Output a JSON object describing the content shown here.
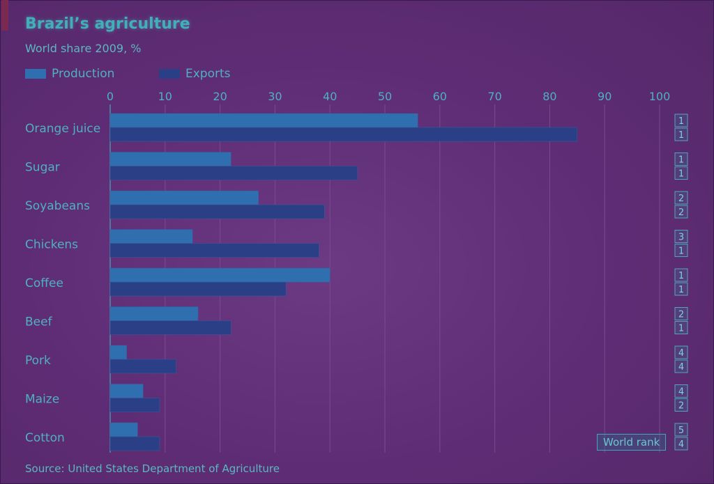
{
  "header": {
    "title": "Brazil’s agriculture",
    "subtitle": "World share 2009, %"
  },
  "legend": {
    "production": "Production",
    "exports": "Exports"
  },
  "footer": {
    "source": "Source: United States Department of Agriculture",
    "world_rank_label": "World rank"
  },
  "colors": {
    "production": "#2f6fb0",
    "exports": "#2a3f86",
    "text": "#4fb0c0"
  },
  "chart_data": {
    "type": "bar",
    "orientation": "horizontal",
    "title": "Brazil’s agriculture",
    "subtitle": "World share 2009, %",
    "categories": [
      "Orange juice",
      "Sugar",
      "Soyabeans",
      "Chickens",
      "Coffee",
      "Beef",
      "Pork",
      "Maize",
      "Cotton"
    ],
    "series": [
      {
        "name": "Production",
        "values": [
          56,
          22,
          27,
          15,
          40,
          16,
          3,
          6,
          5
        ],
        "world_rank": [
          1,
          1,
          2,
          3,
          1,
          2,
          4,
          4,
          5
        ]
      },
      {
        "name": "Exports",
        "values": [
          85,
          45,
          39,
          38,
          32,
          22,
          12,
          9,
          9
        ],
        "world_rank": [
          1,
          1,
          2,
          1,
          1,
          1,
          4,
          2,
          4
        ]
      }
    ],
    "xlim": [
      0,
      100
    ],
    "xticks": [
      0,
      10,
      20,
      30,
      40,
      50,
      60,
      70,
      80,
      90,
      100
    ],
    "xaxis_position": "top",
    "grid": true,
    "legend_position": "top-left",
    "source": "Source: United States Department of Agriculture"
  }
}
